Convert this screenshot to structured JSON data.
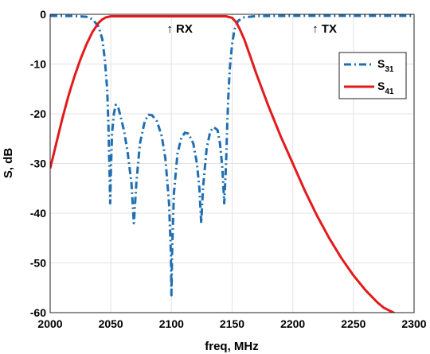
{
  "chart_data": {
    "type": "line",
    "xlabel": "freq, MHz",
    "ylabel": "S, dB",
    "xlim": [
      2000,
      2300
    ],
    "ylim": [
      -60,
      0
    ],
    "x_ticks": [
      2000,
      2050,
      2100,
      2150,
      2200,
      2250,
      2300
    ],
    "y_ticks": [
      0,
      -10,
      -20,
      -30,
      -40,
      -50,
      -60
    ],
    "grid": true,
    "legend_position": "right",
    "annotations": [
      {
        "text": "↑ RX",
        "x": 2100,
        "y": -2
      },
      {
        "text": "↑ TX",
        "x": 2220,
        "y": -2
      }
    ],
    "series": [
      {
        "name": "S31",
        "legend_main": "S",
        "legend_sub": "31",
        "color": "#1f6fb2",
        "style": "dash-dot",
        "points": [
          [
            2000,
            -0.3
          ],
          [
            2020,
            -0.35
          ],
          [
            2030,
            -0.5
          ],
          [
            2035,
            -1.0
          ],
          [
            2040,
            -2.5
          ],
          [
            2043,
            -5
          ],
          [
            2045,
            -9
          ],
          [
            2047,
            -15
          ],
          [
            2048,
            -22
          ],
          [
            2049,
            -32
          ],
          [
            2049.5,
            -38
          ],
          [
            2050,
            -32
          ],
          [
            2051,
            -24
          ],
          [
            2052.5,
            -20
          ],
          [
            2054,
            -18.2
          ],
          [
            2056,
            -18.6
          ],
          [
            2058,
            -20.5
          ],
          [
            2061,
            -23.5
          ],
          [
            2064,
            -28
          ],
          [
            2067,
            -34
          ],
          [
            2069,
            -42
          ],
          [
            2071,
            -34
          ],
          [
            2074,
            -26
          ],
          [
            2078,
            -21.5
          ],
          [
            2081,
            -20.2
          ],
          [
            2084,
            -20.3
          ],
          [
            2088,
            -21.5
          ],
          [
            2092,
            -24.5
          ],
          [
            2095,
            -29
          ],
          [
            2098,
            -38
          ],
          [
            2099.5,
            -48
          ],
          [
            2100,
            -56.5
          ],
          [
            2100.5,
            -48
          ],
          [
            2102,
            -36
          ],
          [
            2105,
            -28
          ],
          [
            2108,
            -25
          ],
          [
            2111,
            -23.8
          ],
          [
            2114,
            -24
          ],
          [
            2118,
            -26
          ],
          [
            2121,
            -30
          ],
          [
            2123,
            -35
          ],
          [
            2124.5,
            -42
          ],
          [
            2126,
            -35
          ],
          [
            2129,
            -27
          ],
          [
            2132,
            -23.5
          ],
          [
            2135,
            -22.7
          ],
          [
            2138,
            -23.3
          ],
          [
            2140,
            -26
          ],
          [
            2142,
            -31
          ],
          [
            2143.5,
            -38
          ],
          [
            2145,
            -30
          ],
          [
            2146,
            -22
          ],
          [
            2147,
            -16
          ],
          [
            2148,
            -11
          ],
          [
            2150,
            -6
          ],
          [
            2152,
            -3
          ],
          [
            2155,
            -1.3
          ],
          [
            2160,
            -0.6
          ],
          [
            2170,
            -0.35
          ],
          [
            2200,
            -0.3
          ],
          [
            2300,
            -0.3
          ]
        ]
      },
      {
        "name": "S41",
        "legend_main": "S",
        "legend_sub": "41",
        "color": "#e31a1c",
        "style": "solid",
        "points": [
          [
            2000,
            -31
          ],
          [
            2005,
            -26
          ],
          [
            2010,
            -21
          ],
          [
            2015,
            -16.5
          ],
          [
            2020,
            -12.5
          ],
          [
            2025,
            -9
          ],
          [
            2030,
            -6
          ],
          [
            2035,
            -3.5
          ],
          [
            2040,
            -1.7
          ],
          [
            2043,
            -1
          ],
          [
            2046,
            -0.6
          ],
          [
            2050,
            -0.4
          ],
          [
            2100,
            -0.4
          ],
          [
            2145,
            -0.4
          ],
          [
            2150,
            -0.7
          ],
          [
            2153,
            -1.5
          ],
          [
            2156,
            -2.8
          ],
          [
            2160,
            -5
          ],
          [
            2165,
            -8.5
          ],
          [
            2170,
            -12
          ],
          [
            2180,
            -18.5
          ],
          [
            2190,
            -24.5
          ],
          [
            2200,
            -30
          ],
          [
            2210,
            -35.5
          ],
          [
            2220,
            -40.5
          ],
          [
            2230,
            -45
          ],
          [
            2240,
            -49
          ],
          [
            2250,
            -52.5
          ],
          [
            2260,
            -55.5
          ],
          [
            2270,
            -58
          ],
          [
            2275,
            -59
          ],
          [
            2287,
            -60.5
          ]
        ]
      }
    ]
  }
}
